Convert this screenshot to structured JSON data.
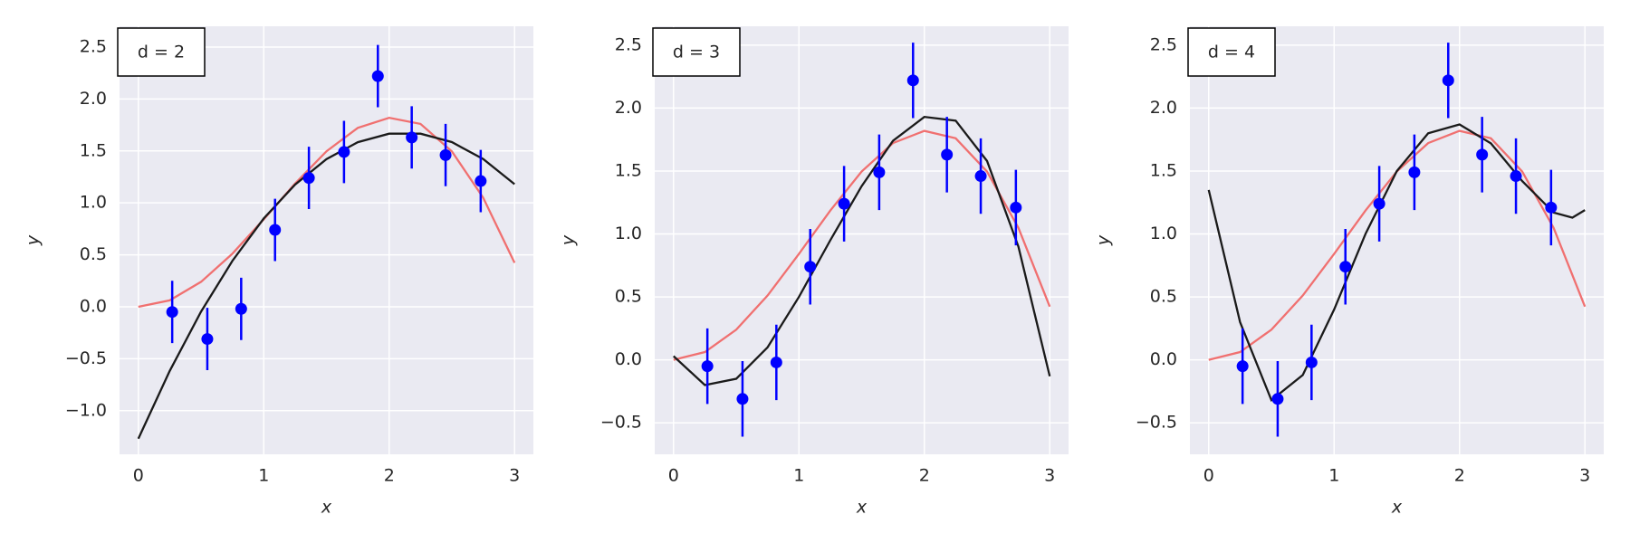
{
  "chart_data": [
    {
      "type": "scatter",
      "annotation": "d = 2",
      "xlabel": "x",
      "ylabel": "y",
      "grid": true,
      "xlim": [
        -0.15,
        3.15
      ],
      "ylim": [
        -1.42,
        2.7
      ],
      "xticks": [
        0,
        1,
        2,
        3
      ],
      "yticks": [
        {
          "value": -1,
          "label": "−1.0"
        },
        {
          "value": -0.5,
          "label": "−0.5"
        },
        {
          "value": 0,
          "label": "0.0"
        },
        0.5,
        {
          "value": 1,
          "label": "1.0"
        },
        1.5,
        {
          "value": 2,
          "label": "2.0"
        },
        2.5
      ],
      "series": [
        {
          "type": "line",
          "color": "#f07070",
          "x": [
            0,
            0.25,
            0.5,
            0.75,
            1,
            1.25,
            1.5,
            1.75,
            2,
            2.25,
            2.5,
            2.75,
            3
          ],
          "values": [
            0,
            0.062,
            0.24,
            0.511,
            0.842,
            1.186,
            1.496,
            1.722,
            1.819,
            1.76,
            1.496,
            1.049,
            0.423
          ]
        },
        {
          "type": "line",
          "color": "#1a1a1a",
          "x": [
            0,
            0.25,
            0.5,
            0.75,
            1,
            1.25,
            1.5,
            1.75,
            2,
            2.25,
            2.5,
            2.75,
            3
          ],
          "values": [
            -1.27,
            -0.618,
            -0.047,
            0.442,
            0.85,
            1.176,
            1.421,
            1.584,
            1.666,
            1.666,
            1.585,
            1.422,
            1.18
          ]
        },
        {
          "type": "errorbar",
          "color": "#0000ff",
          "x": [
            0.27,
            0.55,
            0.82,
            1.09,
            1.36,
            1.64,
            1.91,
            2.18,
            2.45,
            2.73
          ],
          "values": [
            -0.05,
            -0.31,
            -0.02,
            0.74,
            1.24,
            1.49,
            2.22,
            1.63,
            1.46,
            1.21
          ],
          "errors": [
            0.3,
            0.3,
            0.3,
            0.3,
            0.3,
            0.3,
            0.3,
            0.3,
            0.3,
            0.3
          ]
        }
      ]
    },
    {
      "type": "scatter",
      "annotation": "d = 3",
      "xlabel": "x",
      "ylabel": "y",
      "grid": true,
      "xlim": [
        -0.15,
        3.15
      ],
      "ylim": [
        -0.75,
        2.65
      ],
      "xticks": [
        0,
        1,
        2,
        3
      ],
      "yticks": [
        {
          "value": -0.5,
          "label": "−0.5"
        },
        {
          "value": 0,
          "label": "0.0"
        },
        0.5,
        {
          "value": 1,
          "label": "1.0"
        },
        1.5,
        {
          "value": 2,
          "label": "2.0"
        },
        2.5
      ],
      "series": [
        {
          "type": "line",
          "color": "#f07070",
          "x": [
            0,
            0.25,
            0.5,
            0.75,
            1,
            1.25,
            1.5,
            1.75,
            2,
            2.25,
            2.5,
            2.75,
            3
          ],
          "values": [
            0,
            0.062,
            0.24,
            0.511,
            0.842,
            1.186,
            1.496,
            1.722,
            1.819,
            1.76,
            1.496,
            1.049,
            0.423
          ]
        },
        {
          "type": "line",
          "color": "#1a1a1a",
          "x": [
            0,
            0.25,
            0.5,
            0.75,
            1,
            1.25,
            1.5,
            1.75,
            2,
            2.25,
            2.5,
            2.75,
            3
          ],
          "values": [
            0.03,
            -0.2,
            -0.15,
            0.1,
            0.5,
            0.95,
            1.38,
            1.74,
            1.93,
            1.9,
            1.58,
            0.9,
            -0.13
          ]
        },
        {
          "type": "errorbar",
          "color": "#0000ff",
          "x": [
            0.27,
            0.55,
            0.82,
            1.09,
            1.36,
            1.64,
            1.91,
            2.18,
            2.45,
            2.73
          ],
          "values": [
            -0.05,
            -0.31,
            -0.02,
            0.74,
            1.24,
            1.49,
            2.22,
            1.63,
            1.46,
            1.21
          ],
          "errors": [
            0.3,
            0.3,
            0.3,
            0.3,
            0.3,
            0.3,
            0.3,
            0.3,
            0.3,
            0.3
          ]
        }
      ]
    },
    {
      "type": "scatter",
      "annotation": "d = 4",
      "xlabel": "x",
      "ylabel": "y",
      "grid": true,
      "xlim": [
        -0.15,
        3.15
      ],
      "ylim": [
        -0.75,
        2.65
      ],
      "xticks": [
        0,
        1,
        2,
        3
      ],
      "yticks": [
        {
          "value": -0.5,
          "label": "−0.5"
        },
        {
          "value": 0,
          "label": "0.0"
        },
        0.5,
        {
          "value": 1,
          "label": "1.0"
        },
        1.5,
        {
          "value": 2,
          "label": "2.0"
        },
        2.5
      ],
      "series": [
        {
          "type": "line",
          "color": "#f07070",
          "x": [
            0,
            0.25,
            0.5,
            0.75,
            1,
            1.25,
            1.5,
            1.75,
            2,
            2.25,
            2.5,
            2.75,
            3
          ],
          "values": [
            0,
            0.062,
            0.24,
            0.511,
            0.842,
            1.186,
            1.496,
            1.722,
            1.819,
            1.76,
            1.496,
            1.049,
            0.423
          ]
        },
        {
          "type": "line",
          "color": "#1a1a1a",
          "x": [
            0,
            0.25,
            0.5,
            0.75,
            1,
            1.25,
            1.5,
            1.75,
            2,
            2.25,
            2.5,
            2.75,
            2.9,
            3
          ],
          "values": [
            1.35,
            0.3,
            -0.32,
            -0.12,
            0.4,
            1.0,
            1.5,
            1.8,
            1.87,
            1.72,
            1.42,
            1.17,
            1.13,
            1.19
          ]
        },
        {
          "type": "errorbar",
          "color": "#0000ff",
          "x": [
            0.27,
            0.55,
            0.82,
            1.09,
            1.36,
            1.64,
            1.91,
            2.18,
            2.45,
            2.73
          ],
          "values": [
            -0.05,
            -0.31,
            -0.02,
            0.74,
            1.24,
            1.49,
            2.22,
            1.63,
            1.46,
            1.21
          ],
          "errors": [
            0.3,
            0.3,
            0.3,
            0.3,
            0.3,
            0.3,
            0.3,
            0.3,
            0.3,
            0.3
          ]
        }
      ]
    }
  ]
}
